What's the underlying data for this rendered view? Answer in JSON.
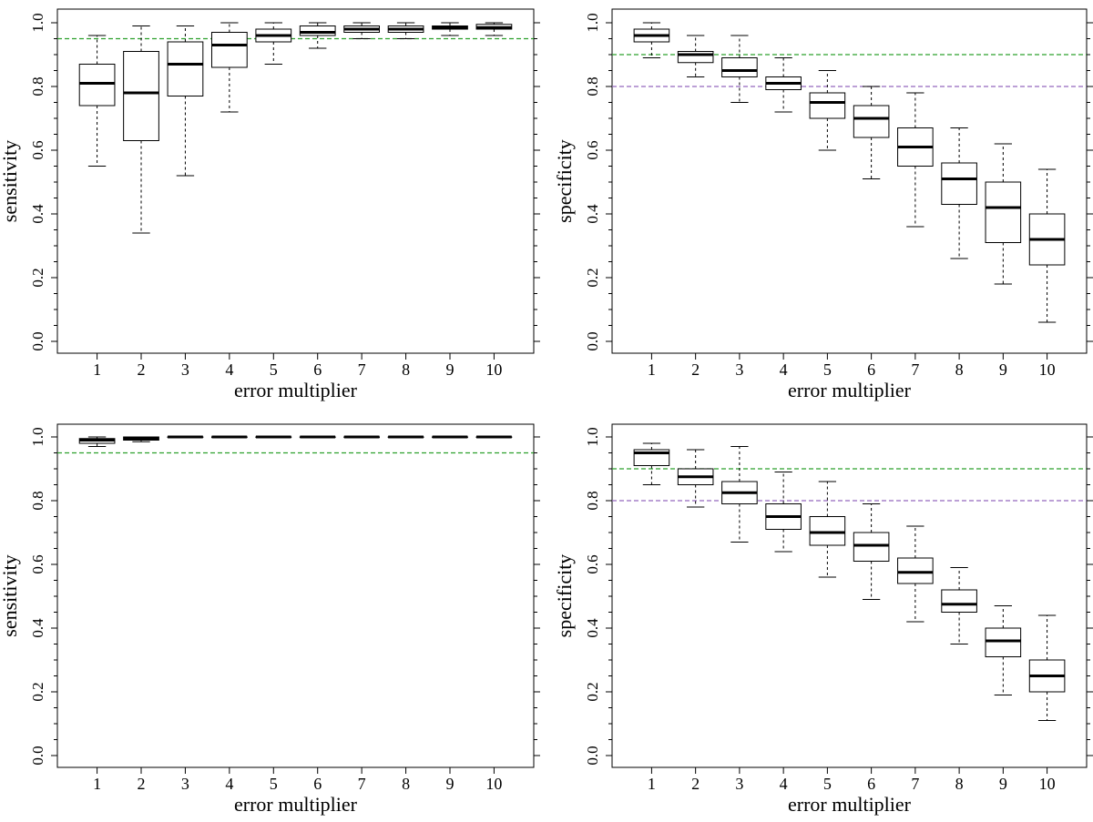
{
  "chart_data": [
    {
      "type": "boxplot",
      "position": "top-left",
      "xlabel": "error multiplier",
      "ylabel": "sensitivity",
      "ylim": [
        0,
        1
      ],
      "yticks": [
        "0.0",
        "0.2",
        "0.4",
        "0.6",
        "0.8",
        "1.0"
      ],
      "categories": [
        "1",
        "2",
        "3",
        "4",
        "5",
        "6",
        "7",
        "8",
        "9",
        "10"
      ],
      "boxes": [
        {
          "whisker_low": 0.55,
          "q1": 0.74,
          "median": 0.81,
          "q3": 0.87,
          "whisker_high": 0.96
        },
        {
          "whisker_low": 0.34,
          "q1": 0.63,
          "median": 0.78,
          "q3": 0.91,
          "whisker_high": 0.99
        },
        {
          "whisker_low": 0.52,
          "q1": 0.77,
          "median": 0.87,
          "q3": 0.94,
          "whisker_high": 0.99
        },
        {
          "whisker_low": 0.72,
          "q1": 0.86,
          "median": 0.93,
          "q3": 0.97,
          "whisker_high": 1.0
        },
        {
          "whisker_low": 0.87,
          "q1": 0.94,
          "median": 0.96,
          "q3": 0.98,
          "whisker_high": 1.0
        },
        {
          "whisker_low": 0.92,
          "q1": 0.96,
          "median": 0.97,
          "q3": 0.99,
          "whisker_high": 1.0
        },
        {
          "whisker_low": 0.95,
          "q1": 0.97,
          "median": 0.98,
          "q3": 0.99,
          "whisker_high": 1.0
        },
        {
          "whisker_low": 0.95,
          "q1": 0.97,
          "median": 0.98,
          "q3": 0.99,
          "whisker_high": 1.0
        },
        {
          "whisker_low": 0.96,
          "q1": 0.98,
          "median": 0.985,
          "q3": 0.99,
          "whisker_high": 1.0
        },
        {
          "whisker_low": 0.96,
          "q1": 0.98,
          "median": 0.985,
          "q3": 0.995,
          "whisker_high": 1.0
        }
      ],
      "reference_lines": [
        {
          "y": 0.95,
          "color": "#2ca02c"
        }
      ]
    },
    {
      "type": "boxplot",
      "position": "top-right",
      "xlabel": "error multiplier",
      "ylabel": "specificity",
      "ylim": [
        0,
        1
      ],
      "yticks": [
        "0.0",
        "0.2",
        "0.4",
        "0.6",
        "0.8",
        "1.0"
      ],
      "categories": [
        "1",
        "2",
        "3",
        "4",
        "5",
        "6",
        "7",
        "8",
        "9",
        "10"
      ],
      "boxes": [
        {
          "whisker_low": 0.89,
          "q1": 0.94,
          "median": 0.96,
          "q3": 0.98,
          "whisker_high": 1.0
        },
        {
          "whisker_low": 0.83,
          "q1": 0.875,
          "median": 0.9,
          "q3": 0.91,
          "whisker_high": 0.96
        },
        {
          "whisker_low": 0.75,
          "q1": 0.83,
          "median": 0.85,
          "q3": 0.89,
          "whisker_high": 0.96
        },
        {
          "whisker_low": 0.72,
          "q1": 0.79,
          "median": 0.81,
          "q3": 0.83,
          "whisker_high": 0.89
        },
        {
          "whisker_low": 0.6,
          "q1": 0.7,
          "median": 0.75,
          "q3": 0.78,
          "whisker_high": 0.85
        },
        {
          "whisker_low": 0.51,
          "q1": 0.64,
          "median": 0.7,
          "q3": 0.74,
          "whisker_high": 0.8
        },
        {
          "whisker_low": 0.36,
          "q1": 0.55,
          "median": 0.61,
          "q3": 0.67,
          "whisker_high": 0.78
        },
        {
          "whisker_low": 0.26,
          "q1": 0.43,
          "median": 0.51,
          "q3": 0.56,
          "whisker_high": 0.67
        },
        {
          "whisker_low": 0.18,
          "q1": 0.31,
          "median": 0.42,
          "q3": 0.5,
          "whisker_high": 0.62
        },
        {
          "whisker_low": 0.06,
          "q1": 0.24,
          "median": 0.32,
          "q3": 0.4,
          "whisker_high": 0.54
        }
      ],
      "reference_lines": [
        {
          "y": 0.9,
          "color": "#2ca02c"
        },
        {
          "y": 0.8,
          "color": "#9467bd"
        }
      ]
    },
    {
      "type": "boxplot",
      "position": "bottom-left",
      "xlabel": "error multiplier",
      "ylabel": "sensitivity",
      "ylim": [
        0,
        1
      ],
      "yticks": [
        "0.0",
        "0.2",
        "0.4",
        "0.6",
        "0.8",
        "1.0"
      ],
      "categories": [
        "1",
        "2",
        "3",
        "4",
        "5",
        "6",
        "7",
        "8",
        "9",
        "10"
      ],
      "boxes": [
        {
          "whisker_low": 0.97,
          "q1": 0.98,
          "median": 0.99,
          "q3": 0.995,
          "whisker_high": 1.0
        },
        {
          "whisker_low": 0.985,
          "q1": 0.99,
          "median": 0.995,
          "q3": 1.0,
          "whisker_high": 1.0
        },
        {
          "whisker_low": 1.0,
          "q1": 1.0,
          "median": 1.0,
          "q3": 1.0,
          "whisker_high": 1.0
        },
        {
          "whisker_low": 1.0,
          "q1": 1.0,
          "median": 1.0,
          "q3": 1.0,
          "whisker_high": 1.0
        },
        {
          "whisker_low": 1.0,
          "q1": 1.0,
          "median": 1.0,
          "q3": 1.0,
          "whisker_high": 1.0
        },
        {
          "whisker_low": 1.0,
          "q1": 1.0,
          "median": 1.0,
          "q3": 1.0,
          "whisker_high": 1.0
        },
        {
          "whisker_low": 1.0,
          "q1": 1.0,
          "median": 1.0,
          "q3": 1.0,
          "whisker_high": 1.0
        },
        {
          "whisker_low": 1.0,
          "q1": 1.0,
          "median": 1.0,
          "q3": 1.0,
          "whisker_high": 1.0
        },
        {
          "whisker_low": 1.0,
          "q1": 1.0,
          "median": 1.0,
          "q3": 1.0,
          "whisker_high": 1.0
        },
        {
          "whisker_low": 1.0,
          "q1": 1.0,
          "median": 1.0,
          "q3": 1.0,
          "whisker_high": 1.0
        }
      ],
      "reference_lines": [
        {
          "y": 0.95,
          "color": "#2ca02c"
        }
      ]
    },
    {
      "type": "boxplot",
      "position": "bottom-right",
      "xlabel": "error multiplier",
      "ylabel": "specificity",
      "ylim": [
        0,
        1
      ],
      "yticks": [
        "0.0",
        "0.2",
        "0.4",
        "0.6",
        "0.8",
        "1.0"
      ],
      "categories": [
        "1",
        "2",
        "3",
        "4",
        "5",
        "6",
        "7",
        "8",
        "9",
        "10"
      ],
      "boxes": [
        {
          "whisker_low": 0.85,
          "q1": 0.91,
          "median": 0.95,
          "q3": 0.96,
          "whisker_high": 0.98
        },
        {
          "whisker_low": 0.78,
          "q1": 0.85,
          "median": 0.875,
          "q3": 0.9,
          "whisker_high": 0.96
        },
        {
          "whisker_low": 0.67,
          "q1": 0.79,
          "median": 0.825,
          "q3": 0.86,
          "whisker_high": 0.97
        },
        {
          "whisker_low": 0.64,
          "q1": 0.71,
          "median": 0.75,
          "q3": 0.79,
          "whisker_high": 0.89
        },
        {
          "whisker_low": 0.56,
          "q1": 0.66,
          "median": 0.7,
          "q3": 0.75,
          "whisker_high": 0.86
        },
        {
          "whisker_low": 0.49,
          "q1": 0.61,
          "median": 0.66,
          "q3": 0.7,
          "whisker_high": 0.79
        },
        {
          "whisker_low": 0.42,
          "q1": 0.54,
          "median": 0.575,
          "q3": 0.62,
          "whisker_high": 0.72
        },
        {
          "whisker_low": 0.35,
          "q1": 0.45,
          "median": 0.475,
          "q3": 0.52,
          "whisker_high": 0.59
        },
        {
          "whisker_low": 0.19,
          "q1": 0.31,
          "median": 0.36,
          "q3": 0.4,
          "whisker_high": 0.47
        },
        {
          "whisker_low": 0.11,
          "q1": 0.2,
          "median": 0.25,
          "q3": 0.3,
          "whisker_high": 0.44
        }
      ],
      "reference_lines": [
        {
          "y": 0.9,
          "color": "#2ca02c"
        },
        {
          "y": 0.8,
          "color": "#9467bd"
        }
      ]
    }
  ]
}
